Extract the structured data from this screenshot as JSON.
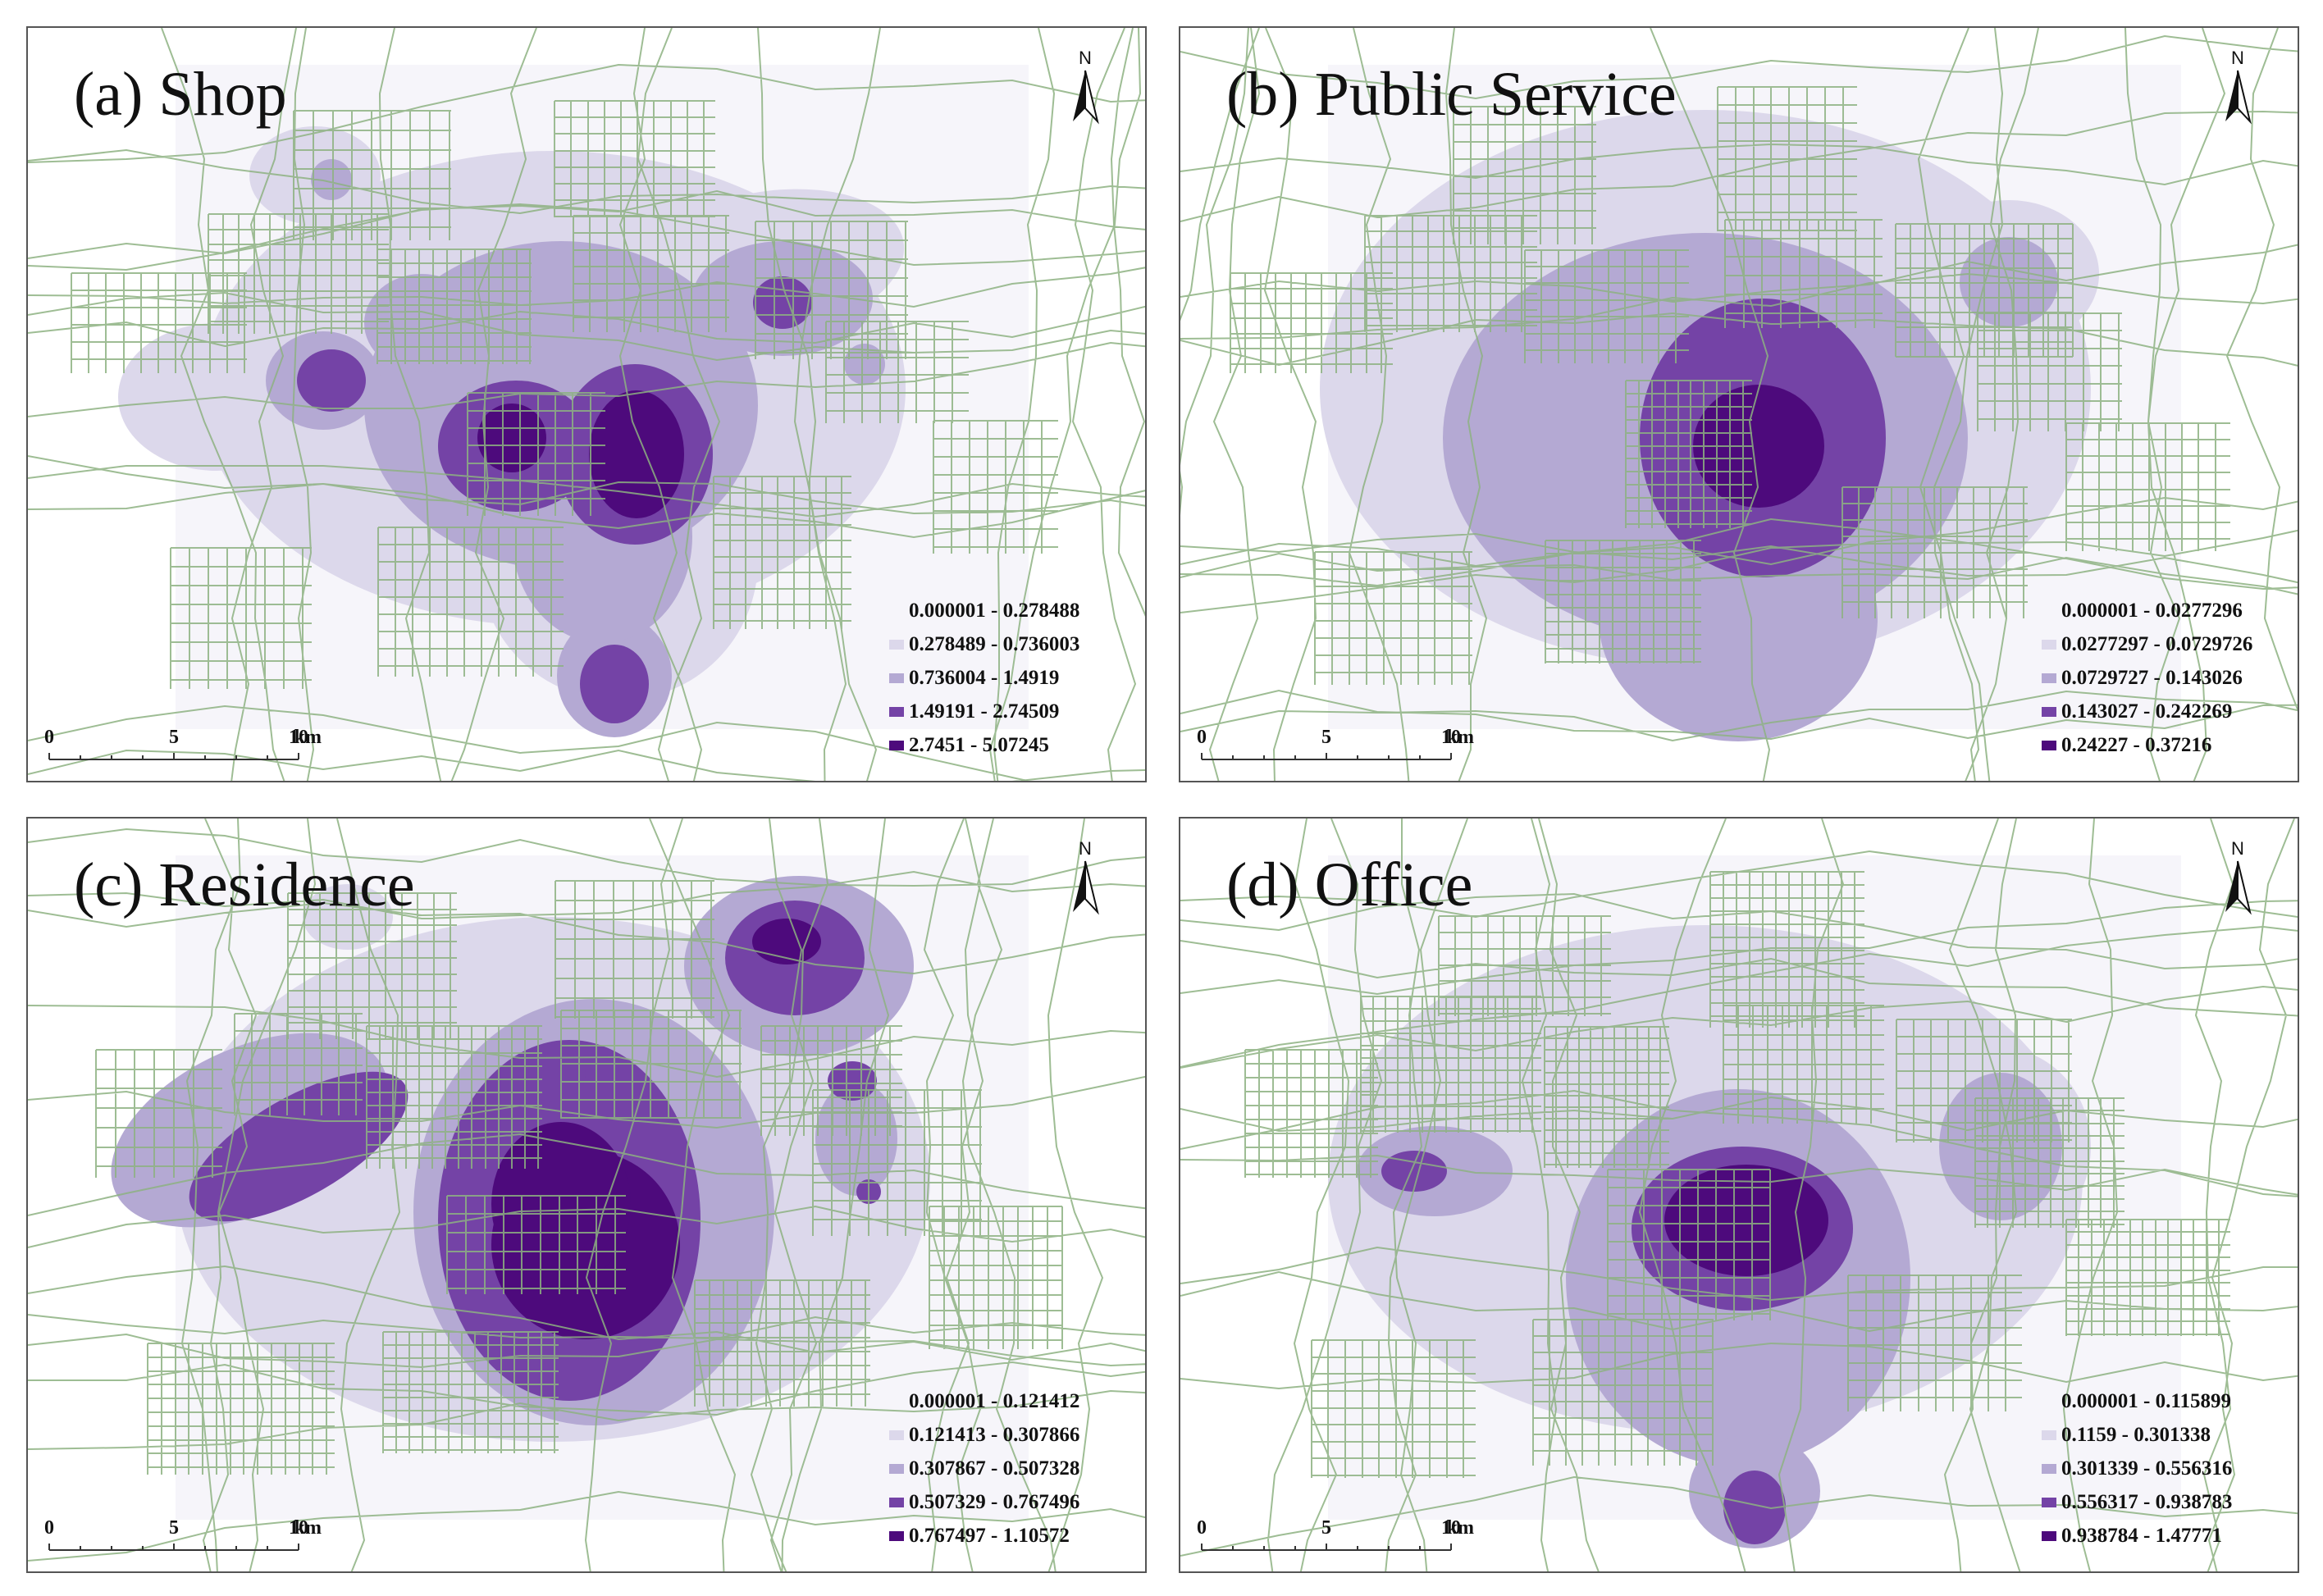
{
  "colors": {
    "class1": "#f6f5fa",
    "class2": "#dcd8eb",
    "class3": "#b4a9d3",
    "class4": "#7443a6",
    "class5": "#4d0a7c",
    "road": "#8db281"
  },
  "scalebar": {
    "ticks": [
      "0",
      "5",
      "10"
    ],
    "unit": "km"
  },
  "north_label": "N",
  "panels": [
    {
      "title": "(a) Shop",
      "legend": [
        "0.000001 - 0.278488",
        "0.278489 - 0.736003",
        "0.736004 - 1.4919",
        "1.49191 - 2.74509",
        "2.7451 - 5.07245"
      ]
    },
    {
      "title": "(b) Public Service",
      "legend": [
        "0.000001 - 0.0277296",
        "0.0277297 - 0.0729726",
        "0.0729727 - 0.143026",
        "0.143027 - 0.242269",
        "0.24227 - 0.37216"
      ]
    },
    {
      "title": "(c) Residence",
      "legend": [
        "0.000001 - 0.121412",
        "0.121413 - 0.307866",
        "0.307867 - 0.507328",
        "0.507329 - 0.767496",
        "0.767497 - 1.10572"
      ]
    },
    {
      "title": "(d) Office",
      "legend": [
        "0.000001 - 0.115899",
        "0.1159 - 0.301338",
        "0.301339 - 0.556316",
        "0.556317 - 0.938783",
        "0.938784 - 1.47771"
      ]
    }
  ]
}
